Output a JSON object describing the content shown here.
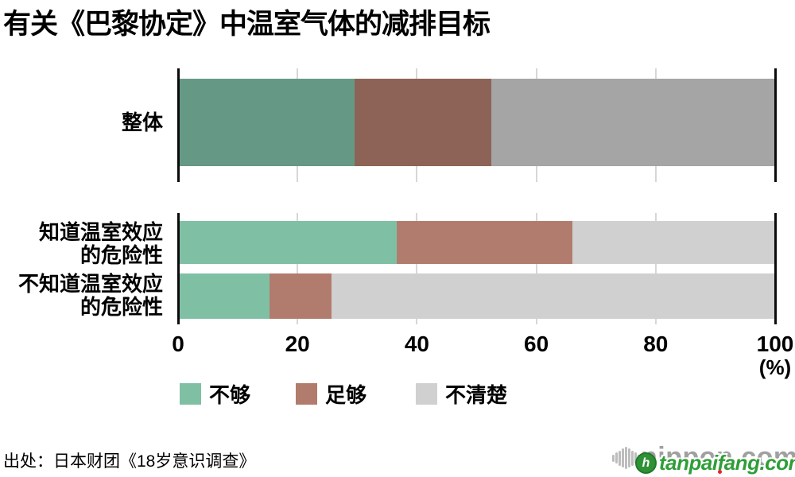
{
  "title": "有关《巴黎协定》中温室气体的减排目标",
  "source": "出处：日本财团《18岁意识调查》",
  "watermarks": {
    "nippon": "nippon.com",
    "tanpaifang": "tanpaifang.com",
    "tanpaifang_icon": "h"
  },
  "chart_data": {
    "type": "bar",
    "orientation": "horizontal",
    "stacked": true,
    "unit": "(%)",
    "xlim": [
      0,
      100
    ],
    "x_ticks": [
      0,
      20,
      40,
      60,
      80,
      100
    ],
    "grid": "vertical gridlines at 20/40/60/80, black edge lines at 0 and 100",
    "legend_position": "bottom",
    "legend": [
      {
        "label": "不够",
        "color": "#7fc0a5"
      },
      {
        "label": "足够",
        "color": "#b17c6e"
      },
      {
        "label": "不清楚",
        "color": "#d0d0d0"
      }
    ],
    "groups": [
      {
        "label": "整体",
        "label_lines": [
          "整体"
        ],
        "values": [
          29.5,
          23.0,
          47.5
        ],
        "colors": [
          "#669985",
          "#8e6357",
          "#a5a5a5"
        ]
      },
      {
        "label": "知道温室效应的危险性",
        "label_lines": [
          "知道温室效应",
          "的危险性"
        ],
        "values": [
          36.6,
          29.4,
          34.0
        ],
        "colors": [
          "#7fc0a5",
          "#b17c6e",
          "#d0d0d0"
        ]
      },
      {
        "label": "不知道温室效应的危险性",
        "label_lines": [
          "不知道温室效应",
          "的危险性"
        ],
        "values": [
          15.3,
          10.4,
          74.3
        ],
        "colors": [
          "#7fc0a5",
          "#b17c6e",
          "#d0d0d0"
        ]
      }
    ]
  }
}
